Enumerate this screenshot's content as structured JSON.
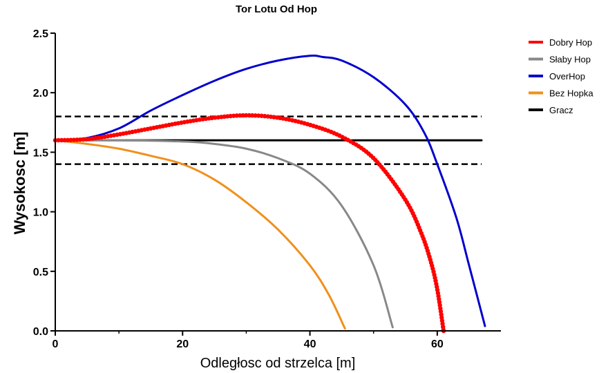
{
  "chart_data": {
    "type": "line",
    "title": "Tor Lotu Od Hop",
    "xlabel": "Odległosc od strzelca [m]",
    "ylabel": "Wysokosc [m]",
    "xlim": [
      0,
      70
    ],
    "ylim": [
      0,
      2.5
    ],
    "x_ticks": [
      "0",
      "20",
      "40",
      "60"
    ],
    "y_ticks": [
      "0.0",
      "0.5",
      "1.0",
      "1.5",
      "2.0",
      "2.5"
    ],
    "grid": false,
    "legend_position": "right",
    "series": [
      {
        "name": "Dobry Hop",
        "color": "#ff0000",
        "marker": "circle",
        "points": [
          [
            0,
            1.6
          ],
          [
            5,
            1.61
          ],
          [
            10,
            1.65
          ],
          [
            15,
            1.7
          ],
          [
            20,
            1.75
          ],
          [
            25,
            1.79
          ],
          [
            30,
            1.81
          ],
          [
            35,
            1.79
          ],
          [
            40,
            1.73
          ],
          [
            45,
            1.63
          ],
          [
            50,
            1.45
          ],
          [
            55,
            1.1
          ],
          [
            57.5,
            0.82
          ],
          [
            59,
            0.58
          ],
          [
            60,
            0.35
          ],
          [
            61,
            0.0
          ]
        ]
      },
      {
        "name": "Słaby Hop",
        "color": "#888888",
        "marker": "none",
        "points": [
          [
            0,
            1.6
          ],
          [
            10,
            1.6
          ],
          [
            20,
            1.59
          ],
          [
            25,
            1.57
          ],
          [
            30,
            1.53
          ],
          [
            35,
            1.45
          ],
          [
            40,
            1.32
          ],
          [
            45,
            1.05
          ],
          [
            50,
            0.55
          ],
          [
            53,
            0.03
          ]
        ]
      },
      {
        "name": "OverHop",
        "color": "#0000cc",
        "marker": "none",
        "points": [
          [
            0,
            1.6
          ],
          [
            5,
            1.62
          ],
          [
            10,
            1.7
          ],
          [
            15,
            1.85
          ],
          [
            20,
            1.98
          ],
          [
            25,
            2.1
          ],
          [
            30,
            2.2
          ],
          [
            35,
            2.27
          ],
          [
            40,
            2.31
          ],
          [
            42,
            2.3
          ],
          [
            45,
            2.27
          ],
          [
            50,
            2.13
          ],
          [
            55,
            1.9
          ],
          [
            58,
            1.66
          ],
          [
            60,
            1.4
          ],
          [
            63,
            0.95
          ],
          [
            65,
            0.55
          ],
          [
            67.5,
            0.04
          ]
        ]
      },
      {
        "name": "Bez Hopka",
        "color": "#f0901a",
        "marker": "none",
        "points": [
          [
            0,
            1.6
          ],
          [
            5,
            1.57
          ],
          [
            10,
            1.53
          ],
          [
            15,
            1.47
          ],
          [
            20,
            1.4
          ],
          [
            25,
            1.27
          ],
          [
            30,
            1.08
          ],
          [
            35,
            0.85
          ],
          [
            40,
            0.55
          ],
          [
            43,
            0.3
          ],
          [
            45.5,
            0.02
          ]
        ]
      },
      {
        "name": "Gracz",
        "color": "#000000",
        "marker": "none",
        "points": [
          [
            0,
            1.6
          ],
          [
            70,
            1.6
          ]
        ]
      }
    ],
    "reference_lines": [
      {
        "y": 1.8,
        "color": "#000000",
        "style": "dashed"
      },
      {
        "y": 1.4,
        "color": "#000000",
        "style": "dashed"
      }
    ]
  }
}
